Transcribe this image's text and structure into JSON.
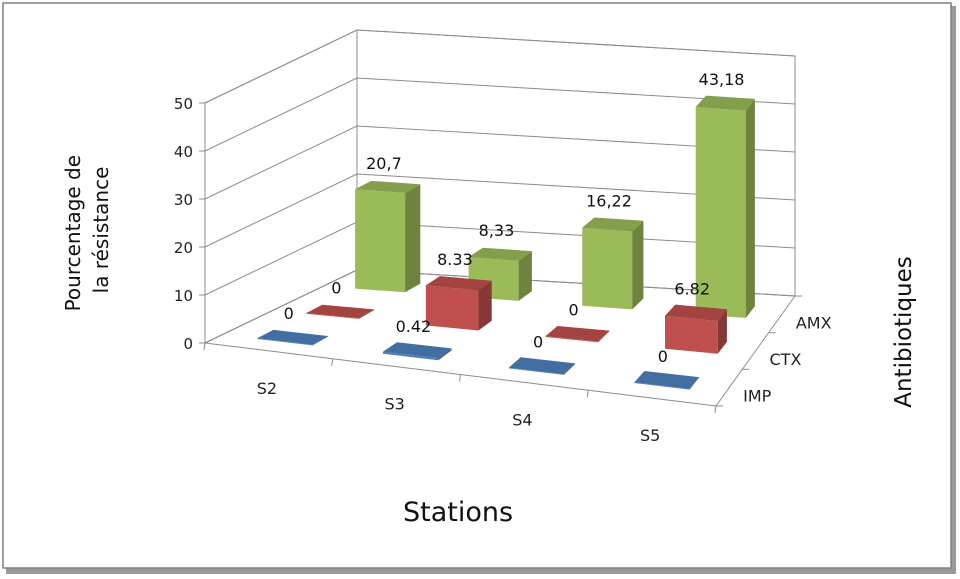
{
  "chart_data": {
    "type": "bar",
    "title": "",
    "categories": [
      "S2",
      "S3",
      "S4",
      "S5"
    ],
    "xlabel": "Stations",
    "ylabel": "Pourcentage de la résistance",
    "zlabel": "Antibiotiques",
    "ylim": [
      0,
      50
    ],
    "yticks": [
      "0",
      "10",
      "20",
      "30",
      "40",
      "50"
    ],
    "series": [
      {
        "name": "IMP",
        "values": [
          0,
          0.42,
          0,
          0
        ],
        "labels": [
          "0",
          "0.42",
          "0",
          "0"
        ],
        "color": "#4F81BD"
      },
      {
        "name": "CTX",
        "values": [
          0,
          8.33,
          0,
          6.82
        ],
        "labels": [
          "0",
          "8.33",
          "0",
          "6.82"
        ],
        "color": "#C0504D"
      },
      {
        "name": "AMX",
        "values": [
          20.7,
          8.33,
          16.22,
          43.18
        ],
        "labels": [
          "20,7",
          "8,33",
          "16,22",
          "43,18"
        ],
        "color": "#9BBB59"
      }
    ]
  }
}
